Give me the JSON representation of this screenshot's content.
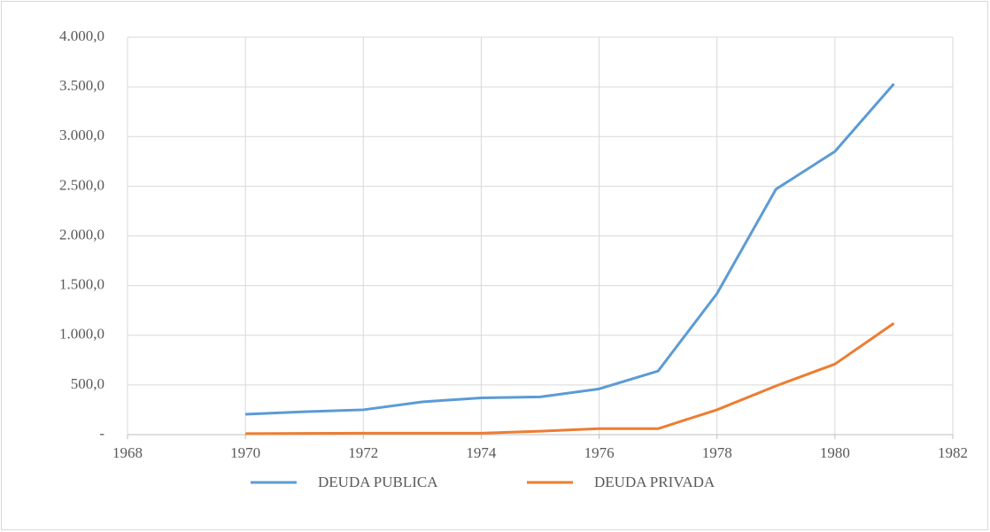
{
  "chart_data": {
    "type": "line",
    "x": [
      1970,
      1971,
      1972,
      1973,
      1974,
      1975,
      1976,
      1977,
      1978,
      1979,
      1980,
      1981
    ],
    "series": [
      {
        "name": "DEUDA PUBLICA",
        "color": "#5b9bd5",
        "values": [
          205,
          230,
          250,
          330,
          370,
          380,
          460,
          640,
          1420,
          2470,
          2850,
          3530
        ]
      },
      {
        "name": "DEUDA PRIVADA",
        "color": "#ed7d31",
        "values": [
          10,
          12,
          15,
          15,
          15,
          35,
          60,
          60,
          250,
          490,
          710,
          1120
        ]
      }
    ],
    "xlim": [
      1968,
      1982
    ],
    "xticks": [
      1968,
      1970,
      1972,
      1974,
      1976,
      1978,
      1980,
      1982
    ],
    "ylim": [
      0,
      4000
    ],
    "yticks": [
      {
        "value": 0,
        "label": "-"
      },
      {
        "value": 500,
        "label": "500,0"
      },
      {
        "value": 1000,
        "label": "1.000,0"
      },
      {
        "value": 1500,
        "label": "1.500,0"
      },
      {
        "value": 2000,
        "label": "2.000,0"
      },
      {
        "value": 2500,
        "label": "2.500,0"
      },
      {
        "value": 3000,
        "label": "3.000,0"
      },
      {
        "value": 3500,
        "label": "3.500,0"
      },
      {
        "value": 4000,
        "label": "4.000,0"
      }
    ],
    "grid": true,
    "legend": "bottom"
  }
}
